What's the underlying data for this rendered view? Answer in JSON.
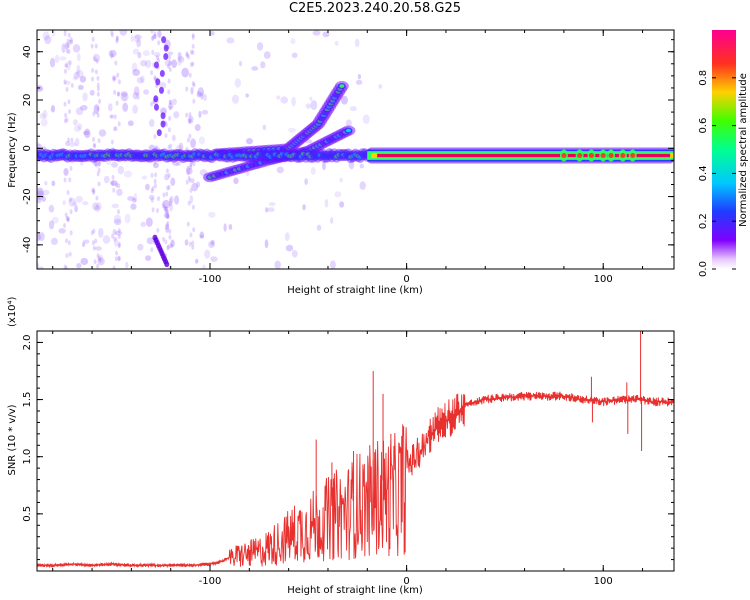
{
  "title": "C2E5.2023.240.20.58.G25",
  "colors": {
    "snr_line": "#e8302e",
    "spectrogram_core": "#e8005a",
    "colorbar": [
      "#8000ff",
      "#2060ff",
      "#00d0ff",
      "#00ff80",
      "#ffd000",
      "#ff2040",
      "#ff0080"
    ]
  },
  "chart_data": [
    {
      "type": "heatmap",
      "xlabel": "Height of straight line (km)",
      "ylabel": "Frequency (Hz)",
      "xlim": [
        -188,
        136
      ],
      "ylim": [
        -50,
        49
      ],
      "xticks": [
        -100,
        0,
        100
      ],
      "yticks": [
        -40,
        -20,
        0,
        20,
        40
      ],
      "xtick_labels": [
        "-100",
        "0",
        "100"
      ],
      "ytick_labels": [
        "-40",
        "-20",
        "0",
        "20",
        "40"
      ],
      "colorbar": {
        "label": "Normalized spectral amplitude",
        "range": [
          0.0,
          1.0
        ],
        "ticks": [
          0.0,
          0.2,
          0.4,
          0.6,
          0.8
        ],
        "tick_labels": [
          "0.0",
          "0.2",
          "0.4",
          "0.6",
          "0.8"
        ]
      },
      "features": [
        {
          "name": "main-band",
          "x_range": [
            -188,
            136
          ],
          "freq": -3,
          "peak_amplitude": 1.0
        },
        {
          "name": "branch-upper",
          "points": [
            [
              -95,
              -2
            ],
            [
              -60,
              0
            ],
            [
              -45,
              10
            ],
            [
              -32,
              27
            ]
          ]
        },
        {
          "name": "branch-lower",
          "points": [
            [
              -100,
              -12
            ],
            [
              -70,
              -5
            ],
            [
              -50,
              -1
            ],
            [
              -28,
              8
            ]
          ]
        },
        {
          "name": "streak",
          "points": [
            [
              -128,
              -37
            ],
            [
              -122,
              -48
            ]
          ]
        }
      ]
    },
    {
      "type": "line",
      "xlabel": "Height of straight line (km)",
      "ylabel": "SNR (10 * v/v)",
      "y_multiplier": "(x10⁴)",
      "xlim": [
        -188,
        136
      ],
      "ylim": [
        0,
        2.1
      ],
      "xticks": [
        -100,
        0,
        100
      ],
      "yticks": [
        0.5,
        1.0,
        1.5,
        2.0
      ],
      "xtick_labels": [
        "-100",
        "0",
        "100"
      ],
      "ytick_labels": [
        "0.5",
        "1.0",
        "1.5",
        "2.0"
      ],
      "series": [
        {
          "x": [
            -188,
            -180,
            -170,
            -160,
            -150,
            -140,
            -130,
            -120,
            -110,
            -100,
            -95,
            -90,
            -86,
            -80,
            -75,
            -70,
            -65,
            -60,
            -55,
            -50,
            -45,
            -40,
            -35,
            -30,
            -25,
            -20,
            -15,
            -10,
            -5,
            0,
            5,
            10,
            15,
            20,
            25,
            30,
            40,
            50,
            60,
            70,
            80,
            90,
            95,
            100,
            110,
            118,
            125,
            136
          ],
          "y": [
            0.05,
            0.05,
            0.06,
            0.05,
            0.06,
            0.05,
            0.05,
            0.05,
            0.05,
            0.06,
            0.08,
            0.12,
            0.16,
            0.18,
            0.2,
            0.25,
            0.3,
            0.36,
            0.42,
            0.45,
            0.5,
            0.55,
            0.6,
            0.62,
            0.7,
            0.72,
            0.78,
            0.8,
            0.8,
            0.95,
            1.05,
            1.15,
            1.25,
            1.32,
            1.38,
            1.45,
            1.5,
            1.52,
            1.53,
            1.53,
            1.53,
            1.5,
            1.5,
            1.48,
            1.5,
            1.5,
            1.48,
            1.48
          ]
        }
      ],
      "spikes": [
        {
          "x": -46,
          "y": 1.15
        },
        {
          "x": -38,
          "y": 0.95
        },
        {
          "x": -27,
          "y": 1.05
        },
        {
          "x": -17,
          "y": 1.75
        },
        {
          "x": -12,
          "y": 1.55
        },
        {
          "x": -8,
          "y": 1.2
        },
        {
          "x": 94,
          "y": 1.7
        },
        {
          "x": 112,
          "y": 1.65
        },
        {
          "x": 119,
          "y": 2.1
        }
      ],
      "dips": [
        {
          "x": 94,
          "y": 1.3
        },
        {
          "x": 112,
          "y": 1.2
        },
        {
          "x": 119,
          "y": 1.05
        }
      ]
    }
  ]
}
